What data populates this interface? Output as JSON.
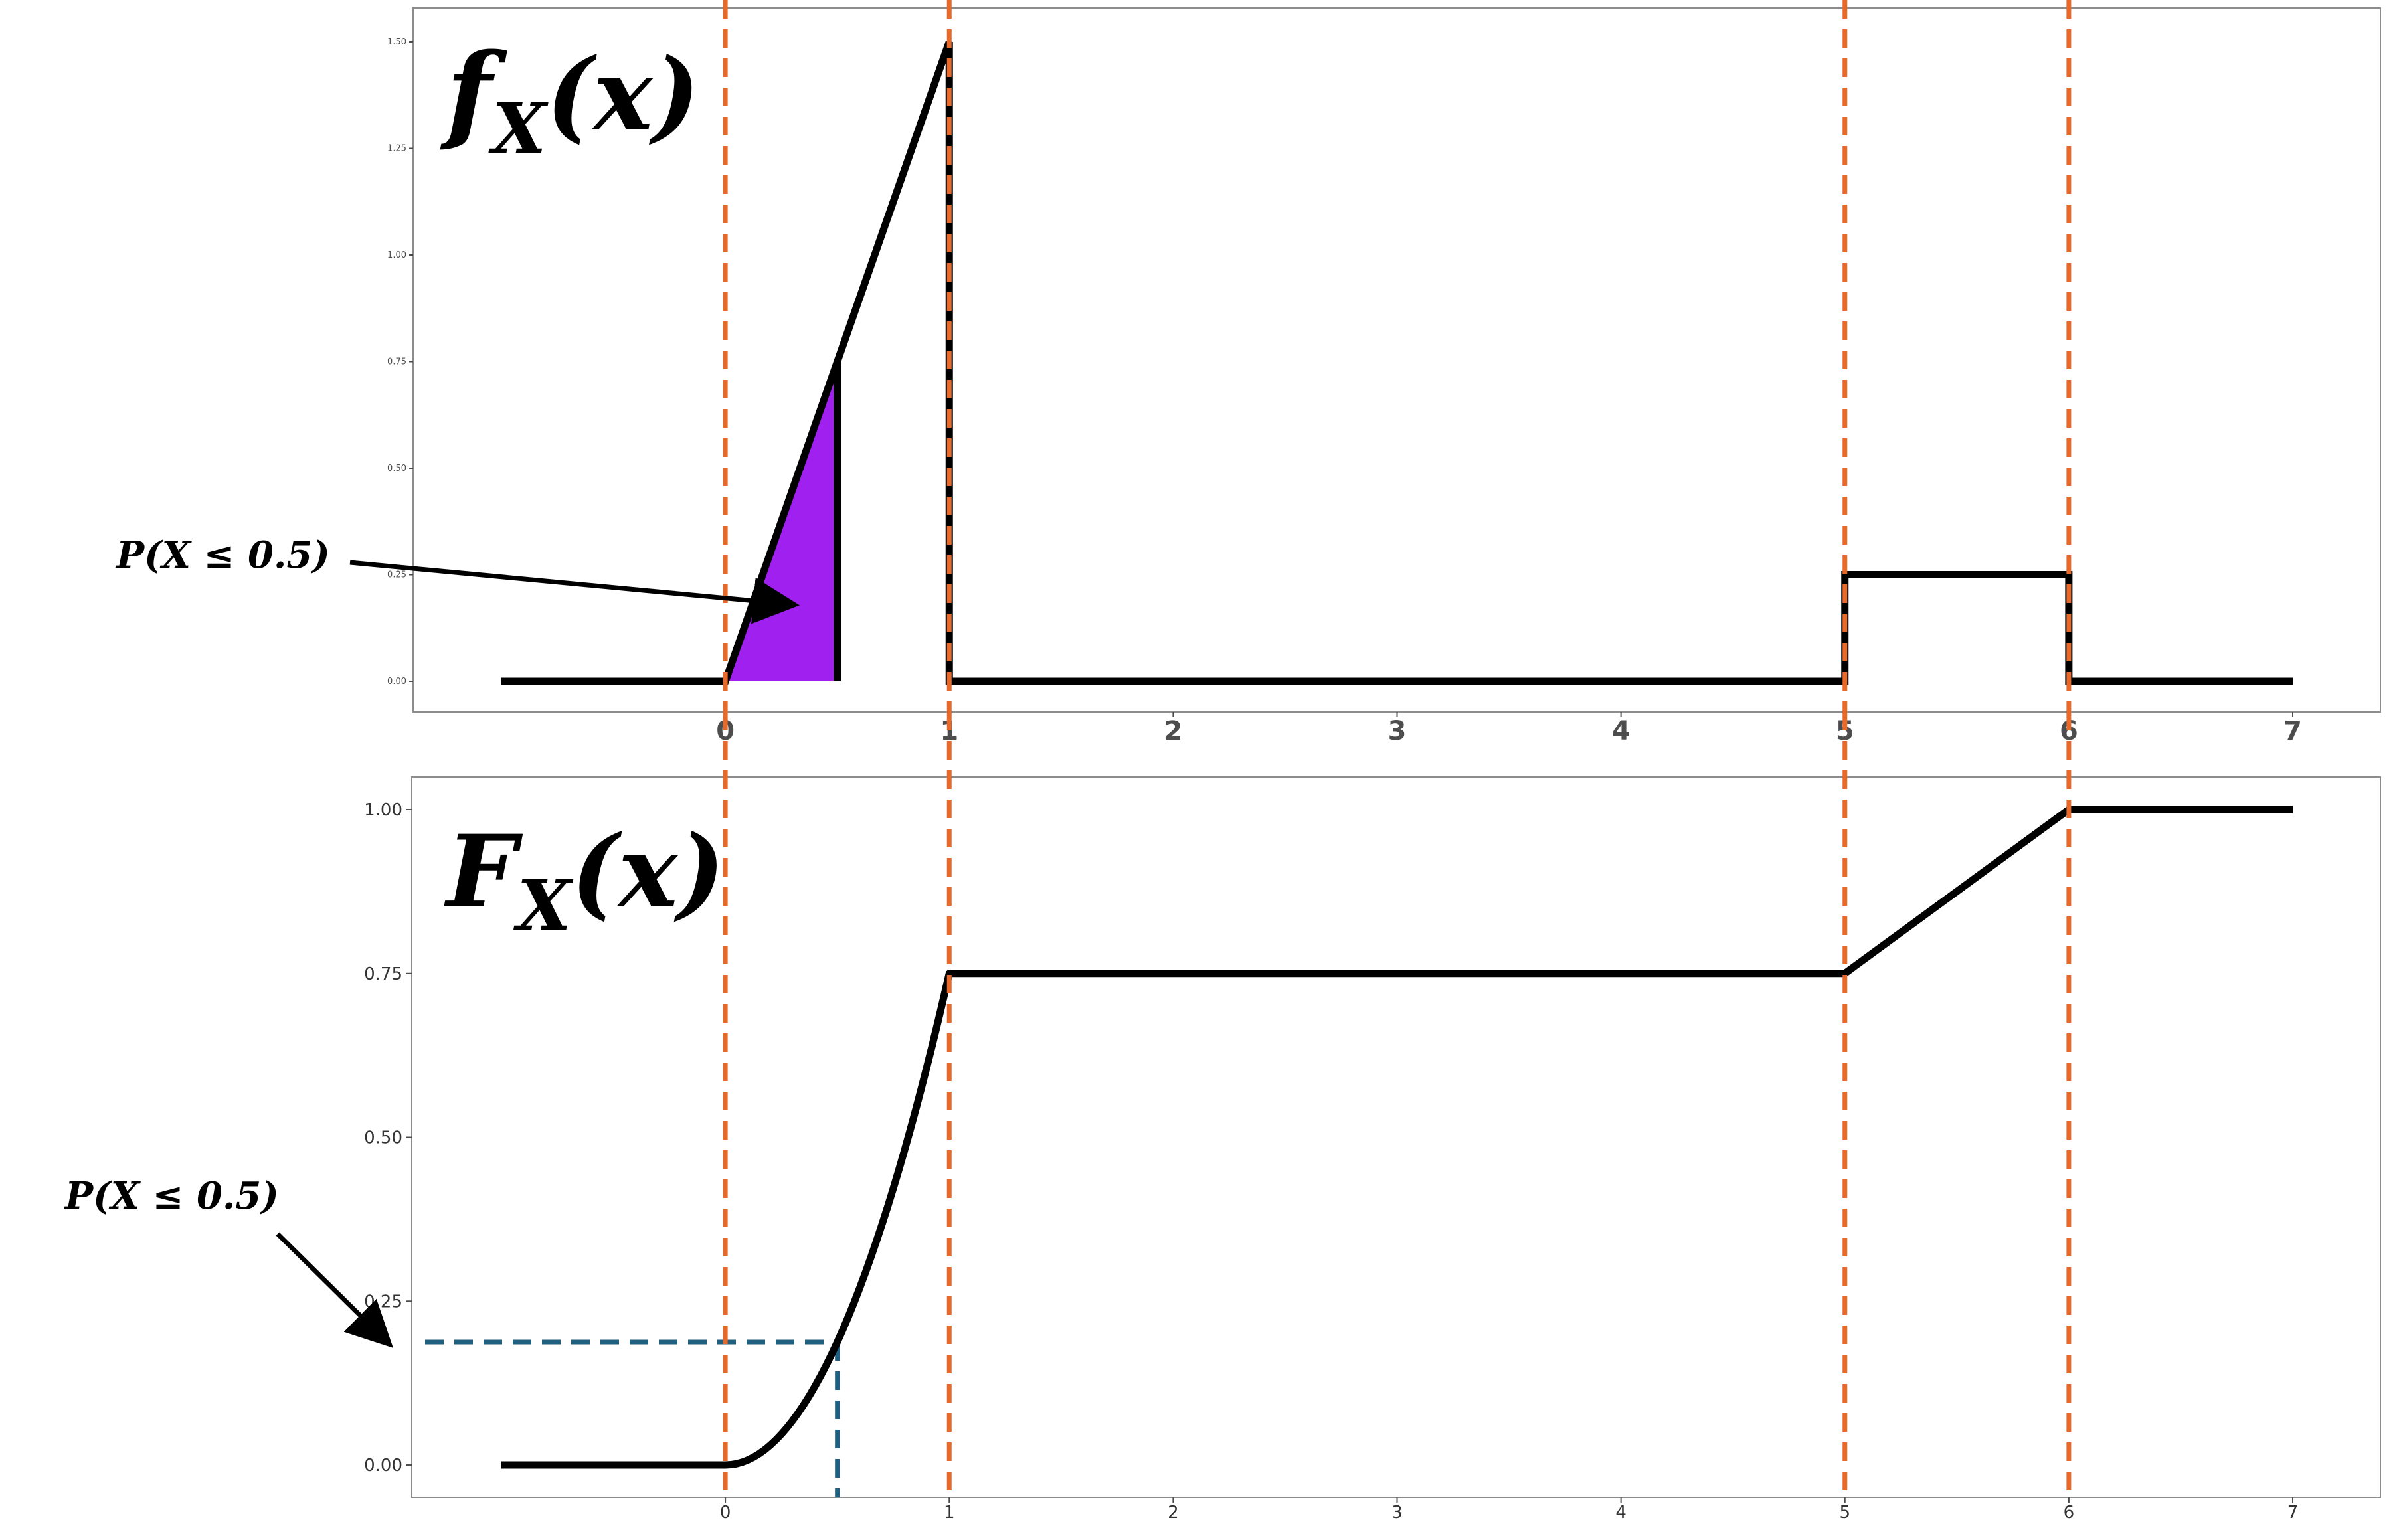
{
  "colors": {
    "curve": "#000000",
    "boundary_line": "#e8692a",
    "probability_fill": "#a020f0",
    "guide_line": "#1f5f7f",
    "panel_border": "#8c8c8c"
  },
  "annotations": {
    "pdf_label": "P(X ≤ 0.5)",
    "cdf_label": "P(X ≤ 0.5)"
  },
  "chart_data": [
    {
      "type": "line",
      "title": "f_X(x)",
      "title_main": "f",
      "title_sub": "X",
      "title_arg": "(x)",
      "xlabel": "",
      "ylabel": "",
      "xlim": [
        -1,
        7
      ],
      "ylim": [
        0,
        1.5
      ],
      "grid": false,
      "x_ticks": [
        0,
        1,
        2,
        3,
        4,
        5,
        6,
        7
      ],
      "x_tick_labels": [
        "0",
        "1",
        "2",
        "3",
        "4",
        "5",
        "6",
        "7"
      ],
      "y_ticks": [
        0,
        0.25,
        0.5,
        0.75,
        1.0,
        1.25,
        1.5
      ],
      "y_tick_labels": [
        "0.00",
        "0.25",
        "0.50",
        "0.75",
        "1.00",
        "1.25",
        "1.50"
      ],
      "series": [
        {
          "x": [
            -1,
            0,
            1,
            1,
            5,
            5,
            6,
            6,
            7
          ],
          "y": [
            0,
            0,
            1.5,
            0,
            0,
            0.25,
            0.25,
            0,
            0
          ]
        }
      ],
      "shaded_region": {
        "x_from": 0,
        "x_to": 0.5,
        "y_at_end": 0.75
      },
      "vertical_reference_lines": [
        0,
        1,
        5,
        6
      ]
    },
    {
      "type": "line",
      "title": "F_X(x)",
      "title_main": "F",
      "title_sub": "X",
      "title_arg": "(x)",
      "xlabel": "",
      "ylabel": "",
      "xlim": [
        -1,
        7
      ],
      "ylim": [
        0,
        1
      ],
      "grid": false,
      "x_ticks": [
        0,
        1,
        2,
        3,
        4,
        5,
        6,
        7
      ],
      "x_tick_labels": [
        "0",
        "1",
        "2",
        "3",
        "4",
        "5",
        "6",
        "7"
      ],
      "y_ticks": [
        0,
        0.25,
        0.5,
        0.75,
        1.0
      ],
      "y_tick_labels": [
        "0.00",
        "0.25",
        "0.50",
        "0.75",
        "1.00"
      ],
      "series": [
        {
          "x": [
            -1,
            0,
            0.1,
            0.2,
            0.3,
            0.4,
            0.5,
            0.6,
            0.7,
            0.8,
            0.9,
            1,
            5,
            6,
            7
          ],
          "y": [
            0,
            0,
            0.0075,
            0.03,
            0.0675,
            0.12,
            0.1875,
            0.27,
            0.3675,
            0.48,
            0.6075,
            0.75,
            0.75,
            1,
            1
          ]
        }
      ],
      "guide_point": {
        "x": 0.5,
        "y": 0.1875
      },
      "vertical_reference_lines": [
        0,
        1,
        5,
        6
      ]
    }
  ]
}
